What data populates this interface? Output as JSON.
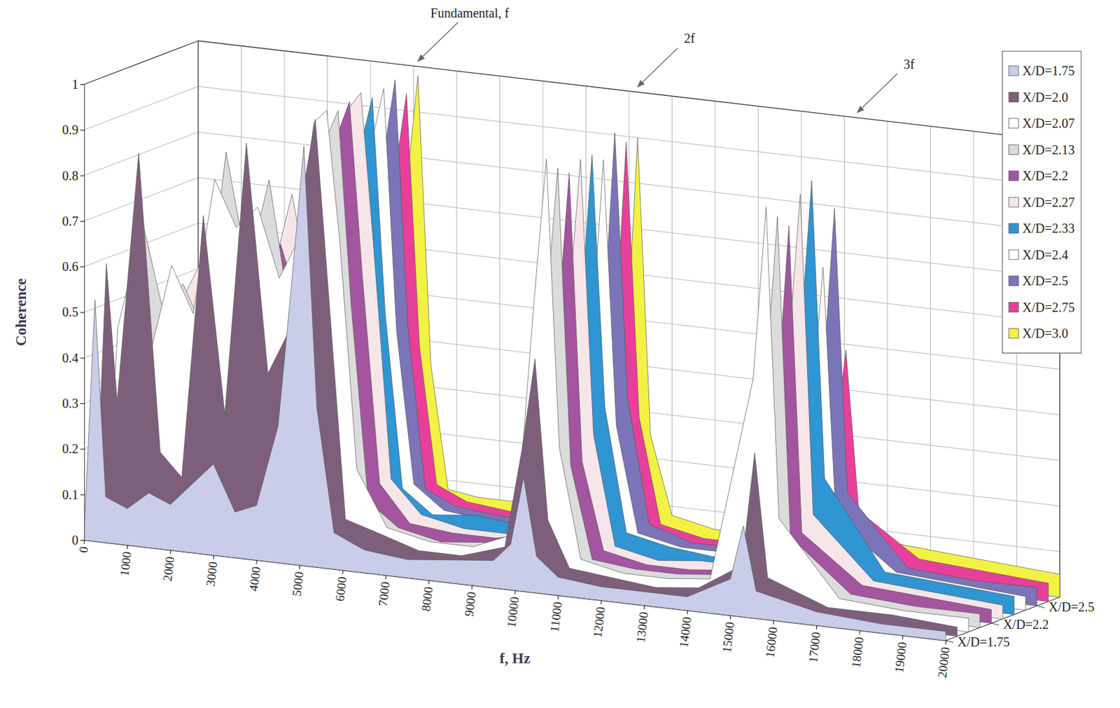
{
  "chart_data": {
    "type": "waterfall",
    "x_label": "f, Hz",
    "y_label": "Coherence",
    "x": [
      0,
      250,
      500,
      1000,
      1500,
      2000,
      2500,
      3000,
      3500,
      4000,
      4500,
      4800,
      5100,
      5400,
      5800,
      6500,
      7500,
      8500,
      9500,
      9900,
      10200,
      10500,
      11000,
      12000,
      13000,
      14000,
      15000,
      15300,
      15600,
      17000,
      18500,
      20000
    ],
    "series": [
      {
        "name": "X/D=1.75",
        "z": 1.75,
        "color": "#c9cdea",
        "values": [
          0.02,
          0.53,
          0.1,
          0.08,
          0.12,
          0.1,
          0.15,
          0.2,
          0.1,
          0.12,
          0.3,
          0.6,
          0.92,
          0.35,
          0.08,
          0.05,
          0.04,
          0.05,
          0.06,
          0.1,
          0.25,
          0.08,
          0.04,
          0.03,
          0.03,
          0.03,
          0.08,
          0.2,
          0.06,
          0.03,
          0.02,
          0.02
        ]
      },
      {
        "name": "X/D=2.0",
        "z": 2.0,
        "color": "#7d5f7b",
        "values": [
          0.03,
          0.6,
          0.3,
          0.85,
          0.2,
          0.15,
          0.73,
          0.3,
          0.9,
          0.4,
          0.5,
          0.8,
          0.97,
          0.6,
          0.1,
          0.08,
          0.05,
          0.05,
          0.08,
          0.3,
          0.5,
          0.15,
          0.05,
          0.04,
          0.03,
          0.04,
          0.1,
          0.35,
          0.08,
          0.03,
          0.03,
          0.02
        ]
      },
      {
        "name": "X/D=2.07",
        "z": 2.07,
        "color": "#ffffff",
        "values": [
          0.03,
          0.45,
          0.55,
          0.4,
          0.6,
          0.5,
          0.8,
          0.7,
          0.75,
          0.6,
          0.7,
          0.95,
          0.98,
          0.7,
          0.2,
          0.08,
          0.06,
          0.06,
          0.1,
          0.6,
          0.93,
          0.3,
          0.06,
          0.04,
          0.04,
          0.05,
          0.5,
          0.88,
          0.2,
          0.04,
          0.03,
          0.03
        ]
      },
      {
        "name": "X/D=2.13",
        "z": 2.13,
        "color": "#dcdcdc",
        "values": [
          0.02,
          0.3,
          0.7,
          0.5,
          0.55,
          0.45,
          0.85,
          0.6,
          0.8,
          0.5,
          0.65,
          0.9,
          0.97,
          0.55,
          0.12,
          0.07,
          0.05,
          0.06,
          0.08,
          0.55,
          0.9,
          0.25,
          0.05,
          0.04,
          0.04,
          0.05,
          0.45,
          0.85,
          0.15,
          0.04,
          0.03,
          0.03
        ]
      },
      {
        "name": "X/D=2.2",
        "z": 2.2,
        "color": "#a4559f",
        "values": [
          0.03,
          0.15,
          0.2,
          0.3,
          0.45,
          0.4,
          0.6,
          0.55,
          0.65,
          0.5,
          0.6,
          0.9,
          0.98,
          0.6,
          0.15,
          0.07,
          0.06,
          0.06,
          0.08,
          0.5,
          0.88,
          0.25,
          0.06,
          0.04,
          0.04,
          0.05,
          0.4,
          0.82,
          0.15,
          0.05,
          0.04,
          0.03
        ]
      },
      {
        "name": "X/D=2.27",
        "z": 2.27,
        "color": "#f6e6ea",
        "values": [
          0.02,
          0.1,
          0.25,
          0.5,
          0.6,
          0.4,
          0.65,
          0.55,
          0.75,
          0.5,
          0.7,
          0.95,
          0.99,
          0.65,
          0.15,
          0.08,
          0.06,
          0.06,
          0.1,
          0.55,
          0.9,
          0.3,
          0.06,
          0.04,
          0.05,
          0.05,
          0.5,
          0.88,
          0.18,
          0.05,
          0.04,
          0.03
        ]
      },
      {
        "name": "X/D=2.33",
        "z": 2.33,
        "color": "#2f95d3",
        "values": [
          0.02,
          0.05,
          0.1,
          0.15,
          0.4,
          0.3,
          0.5,
          0.35,
          0.4,
          0.3,
          0.45,
          0.85,
          0.97,
          0.5,
          0.12,
          0.07,
          0.08,
          0.07,
          0.1,
          0.5,
          0.9,
          0.35,
          0.08,
          0.06,
          0.05,
          0.06,
          0.5,
          0.9,
          0.25,
          0.06,
          0.05,
          0.04
        ]
      },
      {
        "name": "X/D=2.4",
        "z": 2.4,
        "color": "#ffffff",
        "values": [
          0.02,
          0.05,
          0.08,
          0.12,
          0.2,
          0.25,
          0.3,
          0.2,
          0.35,
          0.25,
          0.4,
          0.85,
          0.98,
          0.45,
          0.12,
          0.07,
          0.06,
          0.06,
          0.08,
          0.45,
          0.88,
          0.3,
          0.07,
          0.05,
          0.05,
          0.05,
          0.35,
          0.7,
          0.15,
          0.05,
          0.04,
          0.03
        ]
      },
      {
        "name": "X/D=2.5",
        "z": 2.5,
        "color": "#7b74b8",
        "values": [
          0.02,
          0.04,
          0.06,
          0.08,
          0.1,
          0.12,
          0.15,
          0.12,
          0.2,
          0.18,
          0.3,
          0.8,
          0.99,
          0.45,
          0.1,
          0.07,
          0.06,
          0.06,
          0.08,
          0.45,
          0.93,
          0.35,
          0.08,
          0.05,
          0.05,
          0.06,
          0.4,
          0.82,
          0.2,
          0.05,
          0.04,
          0.04
        ]
      },
      {
        "name": "X/D=2.75",
        "z": 2.75,
        "color": "#e8409a",
        "values": [
          0.02,
          0.03,
          0.05,
          0.06,
          0.08,
          0.1,
          0.1,
          0.08,
          0.15,
          0.12,
          0.25,
          0.75,
          0.95,
          0.4,
          0.1,
          0.07,
          0.06,
          0.06,
          0.08,
          0.4,
          0.9,
          0.3,
          0.07,
          0.05,
          0.05,
          0.06,
          0.25,
          0.5,
          0.15,
          0.06,
          0.05,
          0.04
        ]
      },
      {
        "name": "X/D=3.0",
        "z": 3.0,
        "color": "#f3f244",
        "values": [
          0.02,
          0.03,
          0.04,
          0.05,
          0.06,
          0.07,
          0.08,
          0.06,
          0.1,
          0.1,
          0.2,
          0.7,
          0.98,
          0.35,
          0.08,
          0.07,
          0.07,
          0.06,
          0.07,
          0.35,
          0.9,
          0.25,
          0.08,
          0.06,
          0.06,
          0.07,
          0.08,
          0.1,
          0.08,
          0.07,
          0.06,
          0.05
        ]
      }
    ],
    "xlim": [
      0,
      20000
    ],
    "xticks": [
      0,
      1000,
      2000,
      3000,
      4000,
      5000,
      6000,
      7000,
      8000,
      9000,
      10000,
      11000,
      12000,
      13000,
      14000,
      15000,
      16000,
      17000,
      18000,
      19000,
      20000
    ],
    "ylim": [
      0,
      1
    ],
    "yticks": [
      0,
      0.1,
      0.2,
      0.3,
      0.4,
      0.5,
      0.6,
      0.7,
      0.8,
      0.9,
      1
    ],
    "zticks": [
      {
        "value": 1.75,
        "label": "X/D=1.75"
      },
      {
        "value": 2.2,
        "label": "X/D=2.2"
      },
      {
        "value": 2.5,
        "label": "X/D=2.5"
      }
    ],
    "annotations": [
      {
        "text": "Fundamental, f",
        "x": 5100
      },
      {
        "text": "2f",
        "x": 10200
      },
      {
        "text": "3f",
        "x": 15300
      }
    ],
    "legend": "upper right",
    "grid": true
  }
}
